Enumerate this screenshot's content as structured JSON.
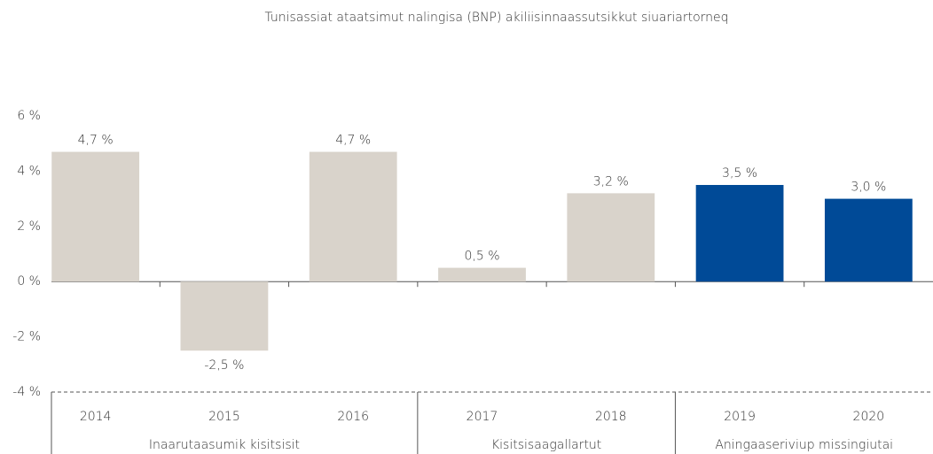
{
  "chart_data": {
    "type": "bar",
    "title": "Tunisassiat ataatsimut nalingisa (BNP) akiliisinnaassutsikkut siuariartorneq",
    "groups": [
      {
        "label": "Inaarutaasumik kisitsisit",
        "categories": [
          "2014",
          "2015",
          "2016"
        ],
        "values": [
          4.7,
          -2.5,
          4.7
        ],
        "value_labels": [
          "4,7 %",
          "-2,5 %",
          "4,7 %"
        ],
        "color": "#d9d3cb"
      },
      {
        "label": "Kisitsisaagallartut",
        "categories": [
          "2017",
          "2018"
        ],
        "values": [
          0.5,
          3.2
        ],
        "value_labels": [
          "0,5 %",
          "3,2 %"
        ],
        "color": "#d9d3cb"
      },
      {
        "label": "Aningaaseriviup missingiutai",
        "categories": [
          "2019",
          "2020"
        ],
        "values": [
          3.5,
          3.0
        ],
        "value_labels": [
          "3,5 %",
          "3,0 %"
        ],
        "color": "#004a97"
      }
    ],
    "ylim": [
      -4,
      6
    ],
    "yticks": [
      {
        "value": 6,
        "label": "6 %"
      },
      {
        "value": 4,
        "label": "4 %"
      },
      {
        "value": 2,
        "label": "2 %"
      },
      {
        "value": 0,
        "label": "0 %"
      },
      {
        "value": -2,
        "label": "-2 %"
      },
      {
        "value": -4,
        "label": "-4 %"
      }
    ]
  }
}
